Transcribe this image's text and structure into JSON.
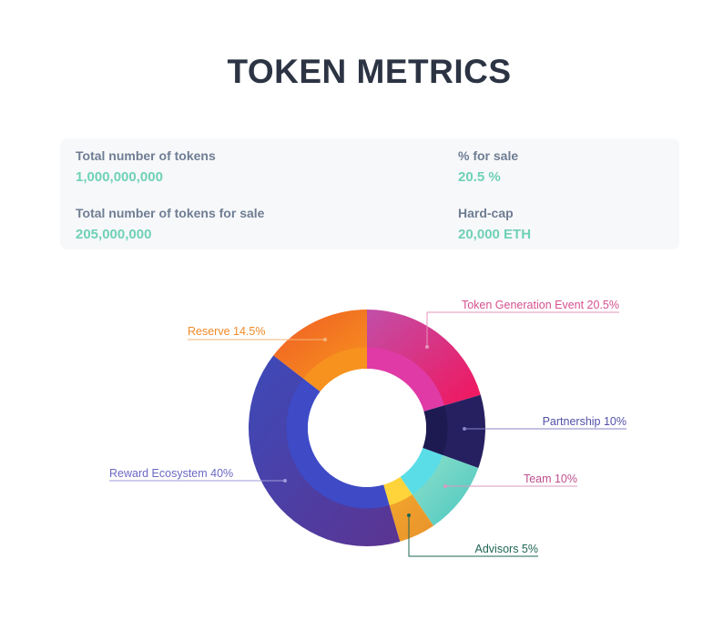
{
  "header": {
    "title": "TOKEN METRICS"
  },
  "metrics": {
    "total_tokens": {
      "label": "Total number of tokens",
      "value": "1,000,000,000"
    },
    "percent_for_sale": {
      "label": "% for sale",
      "value": "20.5 %"
    },
    "tokens_for_sale": {
      "label": "Total number of tokens for sale",
      "value": "205,000,000"
    },
    "hard_cap": {
      "label": "Hard-cap",
      "value": "20,000 ETH"
    }
  },
  "chart_data": {
    "type": "pie",
    "variant": "donut",
    "legend": "callouts",
    "slices": [
      {
        "label": "Token Generation Event  20.5%",
        "value": 20.5,
        "outer_from": "#c14fa8",
        "outer_to": "#f2155c",
        "inner": "#e03aa6",
        "text": "#d6508f",
        "line": "#e597bd"
      },
      {
        "label": "Partnership 10%",
        "value": 10,
        "outer_from": "#262061",
        "outer_to": "#262061",
        "inner": "#1d1a52",
        "text": "#5250a8",
        "line": "#8786c6"
      },
      {
        "label": "Team  10%",
        "value": 10,
        "outer_from": "#8ee0c8",
        "outer_to": "#4ac6c2",
        "inner": "#5bdde7",
        "text": "#c04e8e",
        "line": "#d999bd"
      },
      {
        "label": "Advisors 5%",
        "value": 5,
        "outer_from": "#f2a52b",
        "outer_to": "#e8922c",
        "inner": "#ffd43a",
        "text": "#1e6553",
        "line": "#1e6553"
      },
      {
        "label": "Reward Ecosystem 40%",
        "value": 40,
        "outer_from": "#3d4ab9",
        "outer_to": "#5b3491",
        "inner": "#3e4ac6",
        "text": "#6c68c4",
        "line": "#9d9ad8"
      },
      {
        "label": "Reserve  14.5%",
        "value": 14.5,
        "outer_from": "#ef5c26",
        "outer_to": "#f7941d",
        "inner": "#f7921e",
        "text": "#ef8a27",
        "line": "#f5b67a"
      }
    ]
  }
}
